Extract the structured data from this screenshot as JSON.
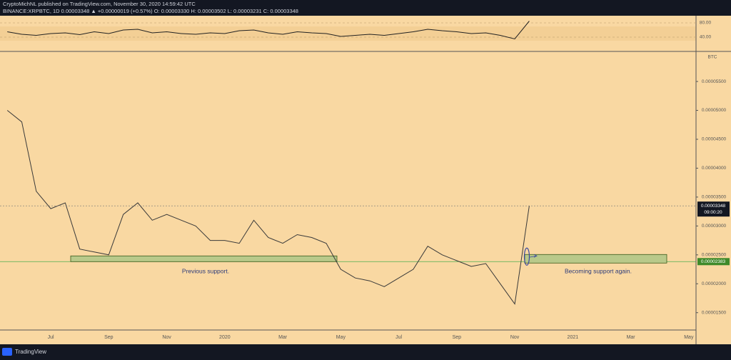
{
  "header": {
    "author_line": "CryptoMichNL published on TradingView.com, November 30, 2020 14:59:42 UTC",
    "symbol_line": "BINANCE:XRPBTC, 1D 0.00003348 ▲ +0.00000019 (+0.57%) O: 0.00003330 H: 0.00003502 L: 0.00003231 C: 0.00003348"
  },
  "chart_data": [
    {
      "type": "line",
      "categories": [
        null,
        null,
        null,
        "Jul",
        null,
        null,
        null,
        "Sep",
        null,
        null,
        null,
        "Nov",
        null,
        null,
        null,
        "2020",
        null,
        null,
        null,
        "Mar",
        null,
        null,
        null,
        "May",
        null,
        null,
        null,
        "Jul",
        null,
        null,
        null,
        "Sep",
        null,
        null,
        null,
        "Nov",
        null,
        null,
        null,
        "2021",
        null,
        null,
        null,
        "Mar",
        null,
        null,
        null,
        "May"
      ],
      "values": [
        5e-05,
        4.8e-05,
        3.6e-05,
        3.3e-05,
        3.4e-05,
        2.6e-05,
        2.55e-05,
        2.5e-05,
        3.2e-05,
        3.4e-05,
        3.1e-05,
        3.2e-05,
        3.1e-05,
        3e-05,
        2.75e-05,
        2.75e-05,
        2.7e-05,
        3.1e-05,
        2.8e-05,
        2.7e-05,
        2.85e-05,
        2.8e-05,
        2.7e-05,
        2.25e-05,
        2.1e-05,
        2.05e-05,
        1.95e-05,
        2.1e-05,
        2.25e-05,
        2.65e-05,
        2.5e-05,
        2.4e-05,
        2.3e-05,
        2.35e-05,
        2e-05,
        1.65e-05,
        3.348e-05,
        null,
        null,
        null,
        null,
        null,
        null,
        null,
        null,
        null,
        null,
        null
      ],
      "color": "#3a3a3a",
      "ylim": [
        1.2e-05,
        6.02e-05
      ],
      "yticks": [
        {
          "value": 1.5e-05,
          "label": "0.00001500"
        },
        {
          "value": 2e-05,
          "label": "0.00002000"
        },
        {
          "value": 2.5e-05,
          "label": "0.00002500"
        },
        {
          "value": 3e-05,
          "label": "0.00003000"
        },
        {
          "value": 3.5e-05,
          "label": "0.00003500"
        },
        {
          "value": 4e-05,
          "label": "0.00004000"
        },
        {
          "value": 4.5e-05,
          "label": "0.00004500"
        },
        {
          "value": 5e-05,
          "label": "0.00005000"
        },
        {
          "value": 5.5e-05,
          "label": "0.00005500"
        }
      ],
      "axis_unit": "BTC",
      "current_price": 3.348e-05,
      "countdown": "09:00:20",
      "support_level": 2.383e-05,
      "annotations": [
        "Previous support.",
        "Becoming support again."
      ]
    },
    {
      "type": "line",
      "values": [
        55,
        48,
        45,
        50,
        52,
        47,
        55,
        50,
        60,
        62,
        52,
        55,
        50,
        48,
        52,
        50,
        58,
        60,
        52,
        48,
        55,
        52,
        50,
        42,
        45,
        48,
        45,
        50,
        55,
        62,
        58,
        55,
        50,
        52,
        45,
        35,
        85,
        null,
        null,
        null,
        null,
        null,
        null,
        null,
        null,
        null,
        null,
        null
      ],
      "color": "#222222",
      "ylim": [
        0,
        100
      ],
      "yticks": [
        {
          "value": 40,
          "label": "40.00"
        },
        {
          "value": 80,
          "label": "80.00"
        }
      ]
    }
  ],
  "footer": {
    "brand": "TradingView"
  }
}
